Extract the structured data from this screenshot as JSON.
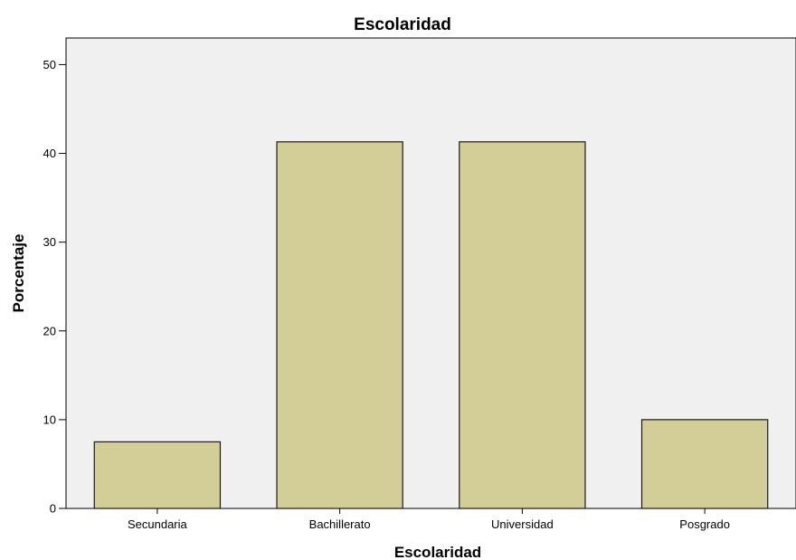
{
  "chart_data": {
    "type": "bar",
    "title": "Escolaridad",
    "xlabel": "Escolaridad",
    "ylabel": "Porcentaje",
    "categories": [
      "Secundaria",
      "Bachillerato",
      "Universidad",
      "Posgrado"
    ],
    "values": [
      7.5,
      41.3,
      41.3,
      10.0
    ],
    "ylim": [
      0,
      53
    ],
    "yticks": [
      0,
      10,
      20,
      30,
      40,
      50
    ],
    "grid": false,
    "colors": {
      "bar_fill": "#d3cd97",
      "bar_stroke": "#1a1a1a",
      "plot_background": "#f0f0f0"
    }
  }
}
